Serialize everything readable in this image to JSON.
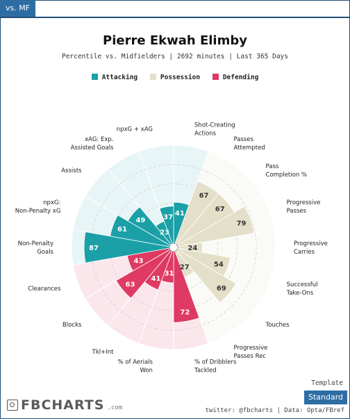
{
  "tab": {
    "label": "vs. MF"
  },
  "header": {
    "title": "Pierre Ekwah Elimby",
    "subtitle": "Percentile vs. Midfielders | 2692 minutes | Last 365 Days"
  },
  "legend": [
    {
      "label": "Attacking",
      "color": "#1aa0a6"
    },
    {
      "label": "Possession",
      "color": "#e4dfc8"
    },
    {
      "label": "Defending",
      "color": "#de3a63"
    }
  ],
  "chart_data": {
    "type": "polar-bar",
    "range": [
      0,
      100
    ],
    "rings": [
      20,
      40,
      60,
      80,
      100
    ],
    "categories": [
      {
        "label": "Shot-Creating Actions",
        "value": 41,
        "group": "Attacking"
      },
      {
        "label": "Passes Attempted",
        "value": 67,
        "group": "Possession"
      },
      {
        "label": "Pass Completion %",
        "value": 67,
        "group": "Possession"
      },
      {
        "label": "Progressive Passes",
        "value": 79,
        "group": "Possession"
      },
      {
        "label": "Progressive Carries",
        "value": 24,
        "group": "Possession"
      },
      {
        "label": "Successful Take-Ons",
        "value": 54,
        "group": "Possession"
      },
      {
        "label": "Touches",
        "value": 69,
        "group": "Possession"
      },
      {
        "label": "Progressive Passes Rec",
        "value": 27,
        "group": "Possession"
      },
      {
        "label": "% of Dribblers Tackled",
        "value": 72,
        "group": "Defending"
      },
      {
        "label": "% of Aerials Won",
        "value": 31,
        "group": "Defending"
      },
      {
        "label": "Tkl+Int",
        "value": 41,
        "group": "Defending"
      },
      {
        "label": "Blocks",
        "value": 63,
        "group": "Defending"
      },
      {
        "label": "Clearances",
        "value": 43,
        "group": "Defending"
      },
      {
        "label": "Non-Penalty Goals",
        "value": 87,
        "group": "Attacking"
      },
      {
        "label": "npxG: Non-Penalty xG",
        "value": 61,
        "group": "Attacking"
      },
      {
        "label": "Assists",
        "value": 49,
        "group": "Attacking"
      },
      {
        "label": "xAG: Exp. Assisted Goals",
        "value": 23,
        "group": "Attacking"
      },
      {
        "label": "npxG + xAG",
        "value": 37,
        "group": "Attacking"
      }
    ],
    "group_colors": {
      "Attacking": {
        "bar": "#1aa0a6",
        "bg": "#e8f5f7"
      },
      "Possession": {
        "bar": "#e4dfc8",
        "bg": "#fafaf7"
      },
      "Defending": {
        "bar": "#de3a63",
        "bg": "#fbe6ec"
      }
    }
  },
  "footer": {
    "logo": "FBCHARTS",
    "logo_suffix": ".com",
    "credit": "twitter: @fbcharts | Data: Opta/FBref",
    "template_label": "Template",
    "template_button": "Standard"
  }
}
